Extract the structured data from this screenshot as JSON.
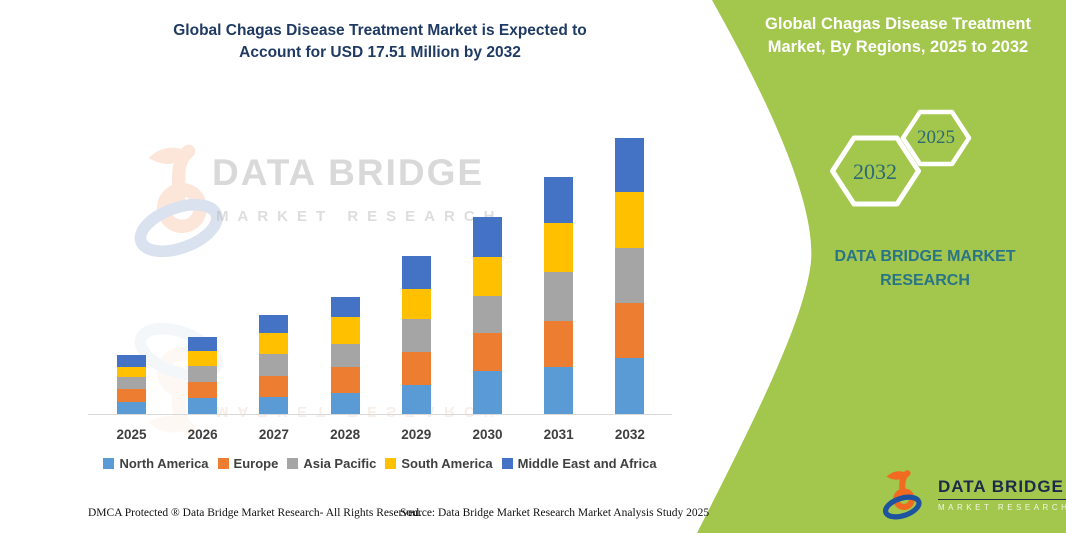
{
  "page": {
    "title_line1": "Global Chagas Disease Treatment Market is Expected to",
    "title_line2": "Account for USD 17.51 Million by 2032"
  },
  "side_panel": {
    "bg_color": "#a3c64c",
    "heading_line1": "Global Chagas Disease Treatment",
    "heading_line2": "Market, By Regions, 2025 to 2032",
    "hexagon_large_year": "2032",
    "hexagon_small_year": "2025",
    "brand_line1": "DATA BRIDGE MARKET",
    "brand_line2": "RESEARCH",
    "logo_name": "DATA BRIDGE",
    "logo_subname": "MARKET RESEARCH",
    "logo_orange": "#f26a21",
    "logo_blue": "#1e53a0"
  },
  "watermark": {
    "line1": "DATA BRIDGE",
    "line2": "MARKET RESEARCH"
  },
  "footer": {
    "left": "DMCA Protected ® Data Bridge Market Research- All Rights Reserved.",
    "right": "Source: Data Bridge Market Research Market Analysis Study 2025"
  },
  "chart_data": {
    "type": "bar",
    "stacked": true,
    "title": "Global Chagas Disease Treatment Market, By Regions, 2025 to 2032",
    "unit": "USD Million",
    "categories": [
      "2025",
      "2026",
      "2027",
      "2028",
      "2029",
      "2030",
      "2031",
      "2032"
    ],
    "series": [
      {
        "name": "North America",
        "color": "#5b9bd5",
        "values": [
          0.78,
          1.0,
          1.06,
          1.35,
          1.84,
          2.75,
          2.96,
          3.53
        ]
      },
      {
        "name": "Europe",
        "color": "#ed7d31",
        "values": [
          0.79,
          1.05,
          1.35,
          1.65,
          2.11,
          2.37,
          2.96,
          3.49
        ]
      },
      {
        "name": "Asia Pacific",
        "color": "#a5a5a5",
        "values": [
          0.76,
          1.0,
          1.4,
          1.44,
          2.05,
          2.37,
          3.11,
          3.49
        ]
      },
      {
        "name": "South America",
        "color": "#ffc000",
        "values": [
          0.63,
          0.97,
          1.31,
          1.73,
          1.9,
          2.45,
          3.11,
          3.59
        ]
      },
      {
        "name": "Middle East and Africa",
        "color": "#4472c4",
        "values": [
          0.8,
          0.89,
          1.16,
          1.27,
          2.11,
          2.58,
          2.92,
          3.41
        ]
      }
    ],
    "totals": [
      3.76,
      4.91,
      6.28,
      7.44,
      10.01,
      12.52,
      15.06,
      17.51
    ],
    "highlight_total_2032": "USD 17.51 Million",
    "legend_position": "bottom",
    "grid": false,
    "axis": {
      "baseline_color": "#d9d9d9",
      "label_color": "#3f3f3f"
    }
  }
}
